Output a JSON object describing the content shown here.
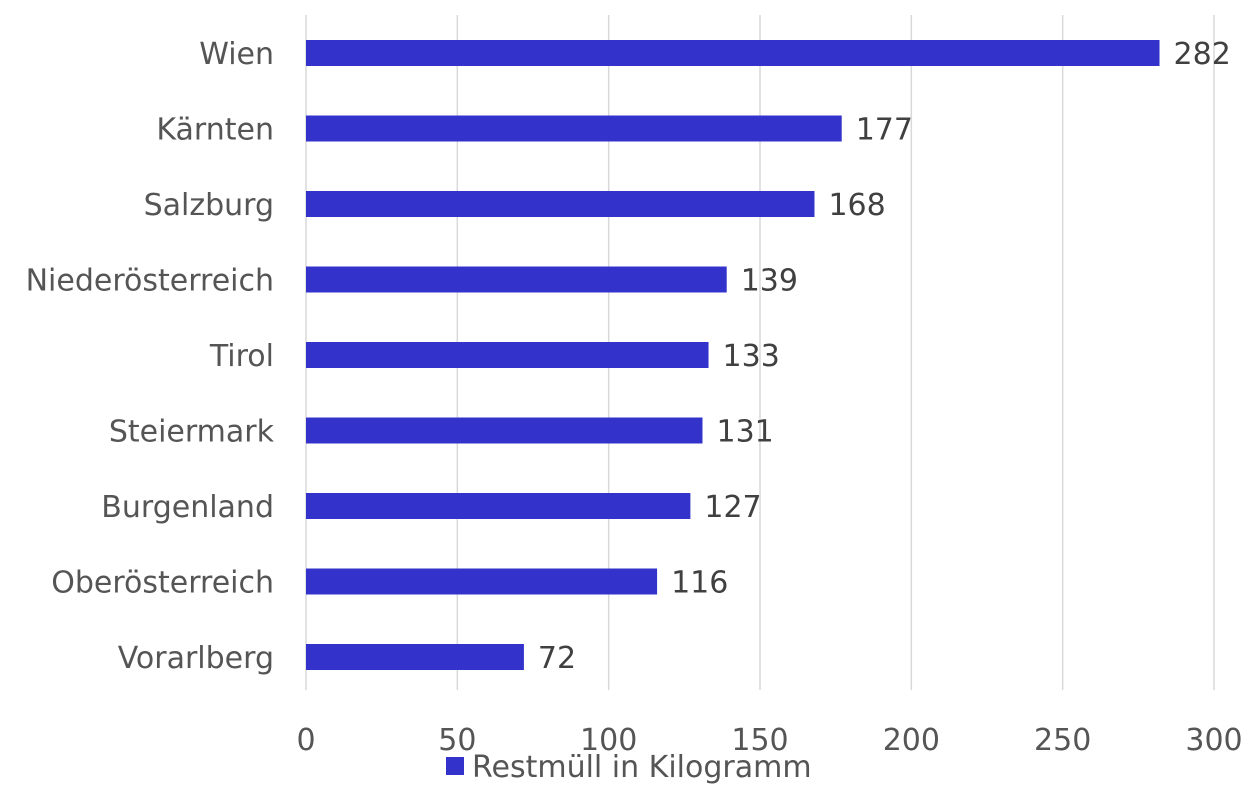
{
  "chart_data": {
    "type": "bar",
    "orientation": "horizontal",
    "categories": [
      "Wien",
      "Kärnten",
      "Salzburg",
      "Niederösterreich",
      "Tirol",
      "Steiermark",
      "Burgenland",
      "Oberösterreich",
      "Vorarlberg"
    ],
    "series": [
      {
        "name": "Restmüll in Kilogramm",
        "values": [
          282,
          177,
          168,
          139,
          133,
          131,
          127,
          116,
          72
        ],
        "color": "#3333cc"
      }
    ],
    "xlim": [
      0,
      300
    ],
    "xticks": [
      0,
      50,
      100,
      150,
      200,
      250,
      300
    ],
    "title": "",
    "xlabel": "",
    "ylabel": "",
    "grid": "vertical",
    "legend_position": "bottom",
    "data_labels": true
  }
}
